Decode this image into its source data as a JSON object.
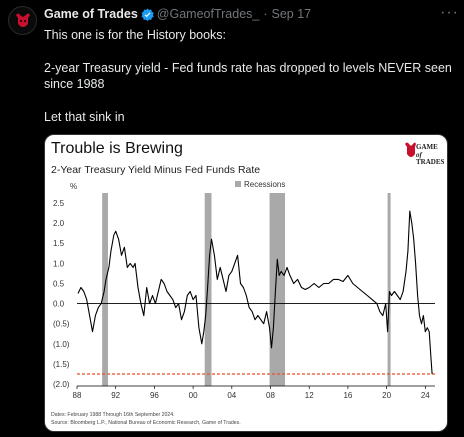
{
  "tweet": {
    "author_name": "Game of Trades",
    "handle": "@GameofTrades_",
    "separator": "·",
    "date": "Sep 17",
    "more_icon": "ellipsis-icon",
    "line1": "This one is for the History books:",
    "line2": "2-year Treasury yield - Fed funds rate has dropped to levels NEVER seen since 1988",
    "line3": "Let that sink in",
    "accent_color": "#1d9bf0"
  },
  "card": {
    "title": "Trouble is Brewing",
    "subtitle": "2-Year Treasury Yield Minus Fed Funds Rate",
    "logo_line1": "GAME",
    "logo_line2": "of",
    "logo_line3": "TRADES",
    "footnote1": "Dates: February 1988 Through 16th September 2024.",
    "footnote2": "Source: Bloomberg L.P., National Bureau of Economic Research, Game of Trades."
  },
  "chart_data": {
    "type": "line",
    "title": "Trouble is Brewing",
    "subtitle": "2-Year Treasury Yield Minus Fed Funds Rate",
    "ylabel": "%",
    "ylim": [
      -1.9,
      2.6
    ],
    "xlim": [
      1988,
      2025
    ],
    "y_ticks": [
      "2.5",
      "2.0",
      "1.5",
      "1.0",
      "0.5",
      "0.0",
      "(0.5)",
      "(1.0)",
      "(1.5)",
      "(2.0)"
    ],
    "y_tick_values": [
      2.5,
      2.0,
      1.5,
      1.0,
      0.5,
      0.0,
      -0.5,
      -1.0,
      -1.5,
      -2.0
    ],
    "x_ticks": [
      "88",
      "92",
      "96",
      "00",
      "04",
      "08",
      "12",
      "16",
      "20",
      "24"
    ],
    "x_tick_values": [
      1988,
      1992,
      1996,
      2000,
      2004,
      2008,
      2012,
      2016,
      2020,
      2024
    ],
    "legend": "Recessions",
    "legend_placement": "top-center",
    "recessions": [
      [
        1990.6,
        1991.2
      ],
      [
        2001.2,
        2001.9
      ],
      [
        2007.9,
        2009.5
      ],
      [
        2020.1,
        2020.4
      ]
    ],
    "reference_line": -1.75,
    "line_color": "#000000",
    "recession_color": "#a9a9a9",
    "reference_color": "#e8502a",
    "series": [
      {
        "x": [
          1988.1,
          1988.4,
          1988.7,
          1989.0,
          1989.3,
          1989.6,
          1989.9,
          1990.2,
          1990.5,
          1990.8,
          1991.0,
          1991.3,
          1991.5,
          1991.8,
          1992.0,
          1992.3,
          1992.6,
          1992.9,
          1993.2,
          1993.5,
          1993.8,
          1994.0,
          1994.3,
          1994.6,
          1994.9,
          1995.2,
          1995.5,
          1995.8,
          1996.1,
          1996.4,
          1996.7,
          1997.0,
          1997.3,
          1997.6,
          1997.9,
          1998.2,
          1998.5,
          1998.8,
          1999.1,
          1999.4,
          1999.7,
          2000.0,
          2000.3,
          2000.6,
          2000.9,
          2001.1,
          2001.3,
          2001.5,
          2001.7,
          2001.9,
          2002.2,
          2002.5,
          2002.8,
          2003.1,
          2003.4,
          2003.7,
          2004.0,
          2004.3,
          2004.6,
          2004.9,
          2005.2,
          2005.5,
          2005.8,
          2006.1,
          2006.4,
          2006.7,
          2007.0,
          2007.3,
          2007.6,
          2007.9,
          2008.1,
          2008.3,
          2008.5,
          2008.7,
          2008.9,
          2009.1,
          2009.4,
          2009.7,
          2010.0,
          2010.4,
          2010.8,
          2011.2,
          2011.6,
          2012.0,
          2012.5,
          2013.0,
          2013.5,
          2014.0,
          2014.5,
          2015.0,
          2015.5,
          2016.0,
          2016.5,
          2017.0,
          2017.5,
          2018.0,
          2018.5,
          2019.0,
          2019.3,
          2019.6,
          2019.9,
          2020.1,
          2020.3,
          2020.5,
          2020.8,
          2021.1,
          2021.4,
          2021.7,
          2022.0,
          2022.2,
          2022.4,
          2022.6,
          2022.8,
          2023.0,
          2023.2,
          2023.4,
          2023.6,
          2023.8,
          2024.0,
          2024.2,
          2024.4,
          2024.6,
          2024.7
        ],
        "y": [
          0.25,
          0.4,
          0.3,
          0.1,
          -0.3,
          -0.7,
          -0.3,
          -0.1,
          0.0,
          0.3,
          0.6,
          0.9,
          1.3,
          1.7,
          1.8,
          1.6,
          1.2,
          1.4,
          0.9,
          1.0,
          0.9,
          1.0,
          0.4,
          0.0,
          -0.3,
          0.4,
          0.0,
          0.2,
          0.0,
          0.3,
          0.6,
          0.5,
          0.3,
          0.2,
          0.1,
          -0.1,
          0.0,
          -0.4,
          -0.2,
          0.2,
          0.3,
          0.1,
          0.2,
          -0.6,
          -1.0,
          -0.7,
          -0.3,
          0.4,
          1.2,
          1.6,
          1.2,
          0.6,
          0.9,
          0.6,
          0.3,
          0.7,
          0.8,
          1.0,
          1.2,
          0.5,
          0.4,
          0.2,
          -0.1,
          -0.2,
          -0.4,
          -0.3,
          -0.4,
          -0.5,
          -0.2,
          -0.6,
          -1.1,
          -0.6,
          0.3,
          1.1,
          0.7,
          0.8,
          0.7,
          0.9,
          0.7,
          0.5,
          0.6,
          0.4,
          0.35,
          0.4,
          0.5,
          0.4,
          0.5,
          0.5,
          0.6,
          0.6,
          0.55,
          0.7,
          0.5,
          0.4,
          0.3,
          0.2,
          0.1,
          0.0,
          -0.2,
          -0.3,
          0.0,
          -0.7,
          0.3,
          0.2,
          0.3,
          0.2,
          0.1,
          0.3,
          0.8,
          1.3,
          2.3,
          2.0,
          1.6,
          1.0,
          0.2,
          -0.3,
          -0.5,
          -0.3,
          -0.7,
          -0.6,
          -0.7,
          -1.4,
          -1.75
        ]
      }
    ]
  }
}
